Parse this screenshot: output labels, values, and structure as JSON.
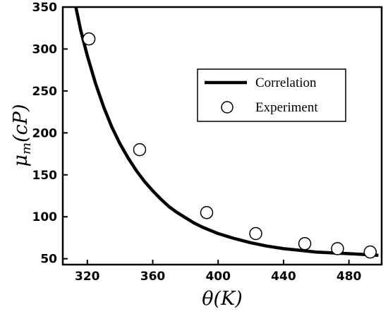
{
  "chart_data": {
    "type": "line",
    "xlabel": "θ(K)",
    "ylabel_base": "μ",
    "ylabel_sub": "m",
    "ylabel_rest": "(cP)",
    "xlim": [
      305,
      500
    ],
    "ylim": [
      43,
      350
    ],
    "xticks": [
      320,
      360,
      400,
      440,
      480
    ],
    "yticks": [
      50,
      100,
      150,
      200,
      250,
      300,
      350
    ],
    "grid": false,
    "legend_position": "upper-right",
    "series": [
      {
        "name": "Correlation",
        "style": "line",
        "x": [
          313,
          316,
          320,
          325,
          330,
          335,
          340,
          345,
          350,
          355,
          360,
          365,
          370,
          375,
          380,
          385,
          390,
          395,
          400,
          410,
          420,
          430,
          440,
          450,
          460,
          470,
          480,
          490,
          498
        ],
        "y": [
          350,
          322,
          292,
          259,
          231,
          207,
          187,
          170,
          155,
          142,
          131,
          121,
          112,
          105,
          99,
          93,
          88,
          84,
          80,
          74,
          69,
          65,
          62,
          60,
          58,
          57,
          56,
          55,
          54
        ]
      },
      {
        "name": "Experiment",
        "style": "markers",
        "x": [
          321,
          352,
          393,
          423,
          453,
          473,
          493
        ],
        "y": [
          312,
          180,
          105,
          80,
          68,
          62,
          58
        ]
      }
    ],
    "colors": {
      "line": "#000000",
      "marker_fill": "#ffffff",
      "marker_stroke": "#000000"
    }
  }
}
